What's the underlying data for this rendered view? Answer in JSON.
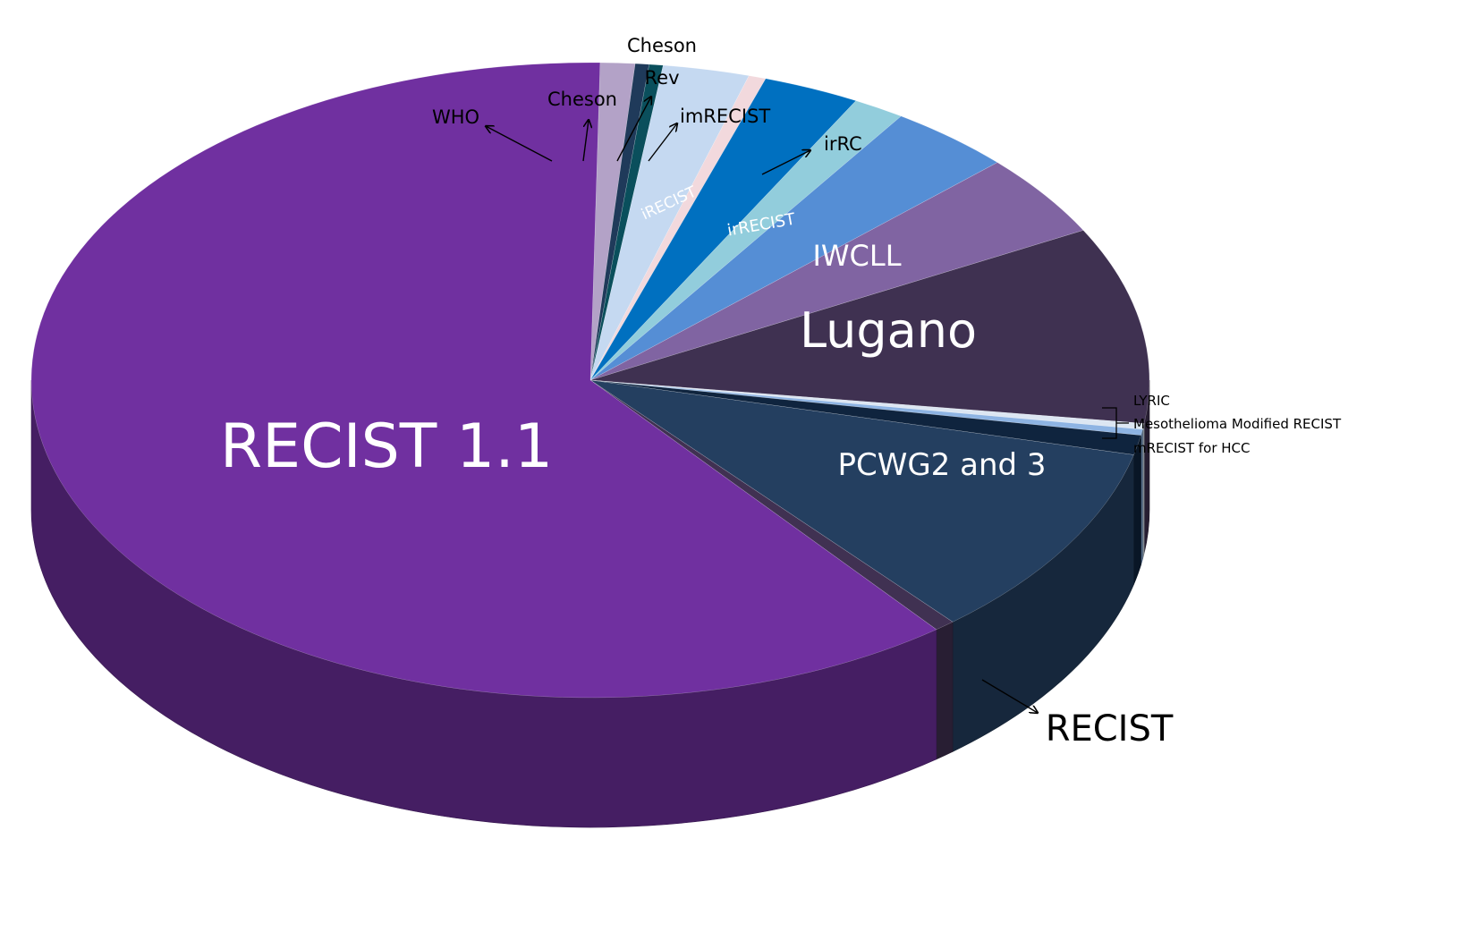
{
  "chart_data": {
    "type": "pie",
    "title": "",
    "style": "3d",
    "slices": [
      {
        "label": "WHO",
        "value": 1.0,
        "color": "#B3A2C7"
      },
      {
        "label": "",
        "value": 0.4,
        "color": "#1F3A5A"
      },
      {
        "label": "Cheson",
        "value": 0.4,
        "color": "#0A4F5C"
      },
      {
        "label": "Cheson Rev",
        "value": 2.5,
        "color": "#C5D9F1"
      },
      {
        "label": "imRECIST",
        "value": 0.5,
        "color": "#F2D9DD"
      },
      {
        "label": "iRECIST",
        "value": 2.8,
        "color": "#0070C0"
      },
      {
        "label": "irRC",
        "value": 1.5,
        "color": "#92CDDC"
      },
      {
        "label": "irRECIST",
        "value": 3.6,
        "color": "#558ED5"
      },
      {
        "label": "IWCLL",
        "value": 4.2,
        "color": "#8064A2"
      },
      {
        "label": "Lugano",
        "value": 10.0,
        "color": "#3F3151"
      },
      {
        "label": "LYRIC",
        "value": 0.3,
        "color": "#DCE6F2"
      },
      {
        "label": "Mesothelioma Modified RECIST",
        "value": 0.3,
        "color": "#8EB4E3"
      },
      {
        "label": "mRECIST for HCC",
        "value": 1.0,
        "color": "#0F243E"
      },
      {
        "label": "PCWG2 and 3",
        "value": 10.0,
        "color": "#243F60"
      },
      {
        "label": "RECIST",
        "value": 0.6,
        "color": "#403152"
      },
      {
        "label": "RECIST 1.1",
        "value": 60.9,
        "color": "#7030A0"
      }
    ]
  }
}
